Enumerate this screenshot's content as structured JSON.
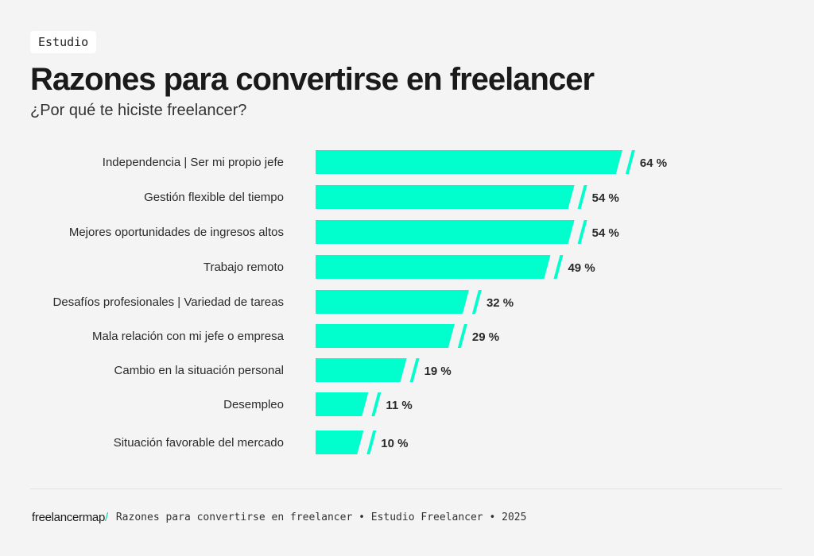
{
  "tag": "Estudio",
  "title": "Razones para convertirse en freelancer",
  "subtitle": "¿Por qué te hiciste freelancer?",
  "footer": {
    "logo": "freelancermap",
    "logo_slash": "/",
    "text": "Razones para convertirse en freelancer • Estudio Freelancer • 2025"
  },
  "chart_data": {
    "type": "bar",
    "orientation": "horizontal",
    "categories": [
      "Independencia  |  Ser mi propio jefe",
      "Gestión flexible del tiempo",
      "Mejores oportunidades de ingresos altos",
      "Trabajo remoto",
      "Desafíos profesionales | Variedad de tareas",
      "Mala relación con mi jefe o empresa",
      "Cambio en la situación personal",
      "Desempleo",
      "Situación favorable del mercado"
    ],
    "values": [
      64,
      54,
      54,
      49,
      32,
      29,
      19,
      11,
      10
    ],
    "value_labels": [
      "64 %",
      "54 %",
      "54 %",
      "49 %",
      "32 %",
      "29 %",
      "19 %",
      "11 %",
      "10 %"
    ],
    "unit": "%",
    "color": "#00ffcc",
    "grid": false
  }
}
